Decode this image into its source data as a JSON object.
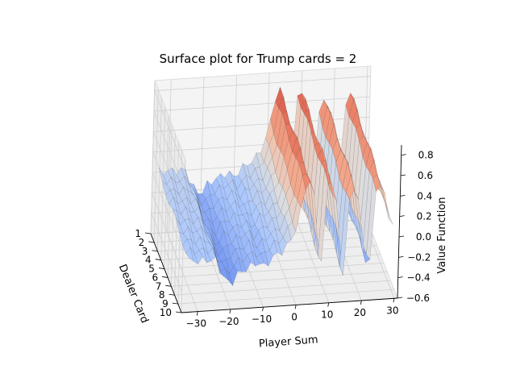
{
  "chart_data": {
    "type": "surface",
    "title": "Surface plot for Trump cards = 2",
    "xlabel": "Player Sum",
    "ylabel": "Dealer Card",
    "zlabel": "Value Function",
    "xlim": [
      -35,
      31
    ],
    "ylim": [
      1,
      10
    ],
    "zlim": [
      -0.6,
      0.9
    ],
    "x_ticks": [
      -30,
      -20,
      -10,
      0,
      10,
      20,
      30
    ],
    "y_ticks": [
      1,
      2,
      3,
      4,
      5,
      6,
      7,
      8,
      9,
      10
    ],
    "z_ticks": [
      0.8,
      0.6,
      0.4,
      0.2,
      0.0,
      -0.2,
      -0.4,
      -0.6
    ],
    "x_tick_labels": [
      "−30",
      "−20",
      "−10",
      "0",
      "10",
      "20",
      "30"
    ],
    "y_tick_labels": [
      "1",
      "2",
      "3",
      "4",
      "5",
      "6",
      "7",
      "8",
      "9",
      "10"
    ],
    "z_tick_labels": [
      "0.8",
      "0.6",
      "0.4",
      "0.2",
      "0.0",
      "−0.2",
      "−0.4",
      "−0.6"
    ],
    "colormap": [
      "#3b4cc0",
      "#6f92f3",
      "#aac7fd",
      "#dddddd",
      "#f7b89c",
      "#e7745b",
      "#b40426"
    ],
    "grid": true,
    "profile": {
      "x": [
        -33,
        -30,
        -25,
        -22,
        -20,
        -18,
        -15,
        -12,
        -10,
        -7,
        -4,
        -2,
        0,
        2,
        4,
        6,
        7,
        9,
        11,
        13,
        14,
        16,
        18,
        20,
        22,
        24,
        26,
        28
      ],
      "z": [
        -0.05,
        -0.05,
        -0.05,
        -0.25,
        -0.3,
        -0.2,
        -0.15,
        -0.1,
        -0.15,
        -0.05,
        0.0,
        0.1,
        0.25,
        0.6,
        0.7,
        0.15,
        -0.4,
        0.75,
        0.55,
        0.0,
        -0.35,
        0.65,
        0.5,
        0.0,
        -0.3,
        0.7,
        0.5,
        0.2
      ]
    }
  }
}
